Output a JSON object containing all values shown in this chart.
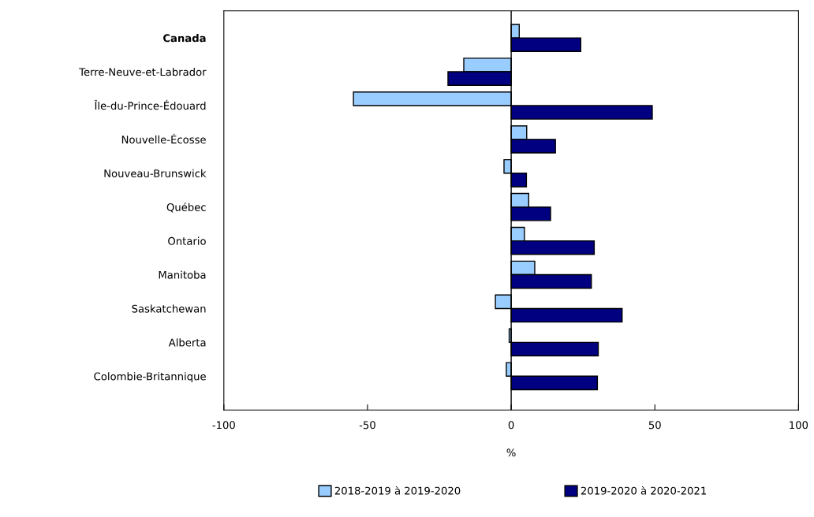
{
  "chart_data": {
    "type": "bar",
    "orientation": "horizontal",
    "xlabel": "%",
    "categories": [
      "Canada",
      "Terre-Neuve-et-Labrador",
      "Île-du-Prince-Édouard",
      "Nouvelle-Écosse",
      "Nouveau-Brunswick",
      "Québec",
      "Ontario",
      "Manitoba",
      "Saskatchewan",
      "Alberta",
      "Colombie-Britannique"
    ],
    "series": [
      {
        "name": "2018-2019 à 2019-2020",
        "color": "#99ccff",
        "values": [
          2.8,
          -16.5,
          -54.9,
          5.4,
          -2.5,
          6.1,
          4.6,
          8.2,
          -5.5,
          -0.7,
          -1.7
        ]
      },
      {
        "name": "2019-2020 à 2020-2021",
        "color": "#000080",
        "values": [
          24.2,
          -22.0,
          49.1,
          15.4,
          5.3,
          13.7,
          28.9,
          27.9,
          38.6,
          30.3,
          30.0
        ]
      }
    ],
    "xlim": [
      -100,
      100
    ],
    "xticks": [
      -100,
      -50,
      0,
      50,
      100
    ],
    "grid": false,
    "legend": "bottom",
    "ref_lines": [
      {
        "axis": "x",
        "value": 0
      }
    ]
  }
}
